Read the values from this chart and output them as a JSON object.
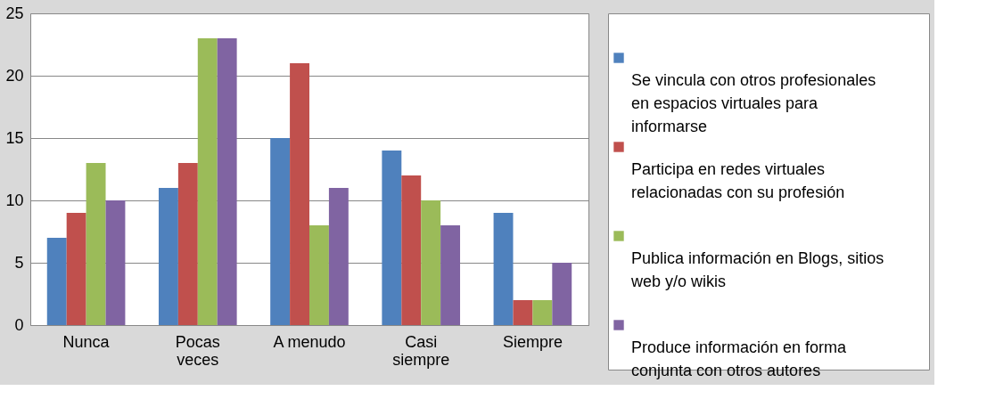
{
  "chart_data": {
    "type": "bar",
    "categories": [
      "Nunca",
      "Pocas veces",
      "A menudo",
      "Casi siempre",
      "Siempre"
    ],
    "series": [
      {
        "name": "Se vincula con otros profesionales en espacios virtuales para informarse",
        "color": "#4f81bd",
        "values": [
          7,
          11,
          15,
          14,
          9
        ]
      },
      {
        "name": "Participa en redes virtuales relacionadas con su profesión",
        "color": "#c0504d",
        "values": [
          9,
          13,
          21,
          12,
          2
        ]
      },
      {
        "name": "Publica información en Blogs, sitios web y/o wikis",
        "color": "#9bbb59",
        "values": [
          13,
          23,
          8,
          10,
          2
        ]
      },
      {
        "name": "Produce información en forma conjunta con otros autores",
        "color": "#8064a2",
        "values": [
          10,
          23,
          11,
          8,
          5
        ]
      }
    ],
    "ylim": [
      0,
      25
    ],
    "yticks": [
      0,
      5,
      10,
      15,
      20,
      25
    ],
    "grid": "y",
    "legend": "right"
  }
}
